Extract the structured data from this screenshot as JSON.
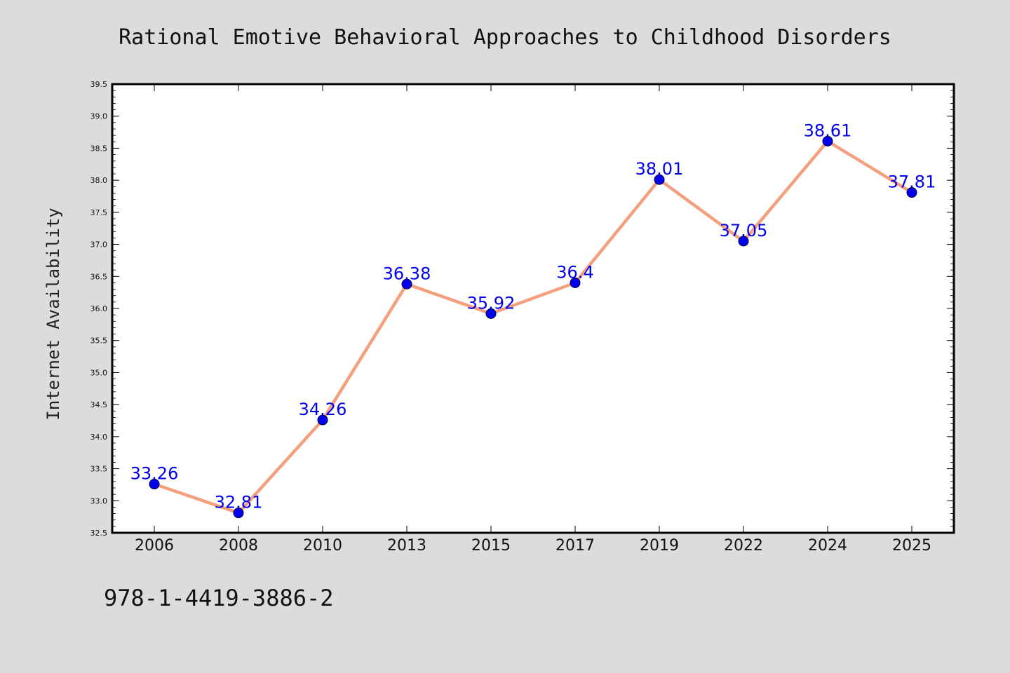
{
  "chart_data": {
    "type": "line",
    "title": "Rational Emotive Behavioral Approaches to Childhood Disorders",
    "xlabel": "",
    "ylabel": "Internet Availability",
    "categories": [
      "2006",
      "2008",
      "2010",
      "2013",
      "2015",
      "2017",
      "2019",
      "2022",
      "2024",
      "2025"
    ],
    "series": [
      {
        "values": [
          33.26,
          32.81,
          34.26,
          36.38,
          35.92,
          36.4,
          38.01,
          37.05,
          38.61,
          37.81
        ],
        "data_labels": [
          "33.26",
          "32.81",
          "34.26",
          "36.38",
          "35.92",
          "36.4",
          "38.01",
          "37.05",
          "38.61",
          "37.81"
        ]
      }
    ],
    "ylim": [
      32.5,
      39.5
    ],
    "yticks": [
      "32.5",
      "33.0",
      "33.5",
      "34.0",
      "34.5",
      "35.0",
      "35.5",
      "36.0",
      "36.5",
      "37.0",
      "37.5",
      "38.0",
      "38.5",
      "39.0",
      "39.5"
    ],
    "grid": false,
    "legend": "none",
    "colors": {
      "line": "#f4a07f",
      "marker": "#0000ee",
      "label": "#0000ee",
      "background": "#dcdcdc",
      "plot_background": "#ffffff"
    }
  },
  "footer_text": "978-1-4419-3886-2"
}
